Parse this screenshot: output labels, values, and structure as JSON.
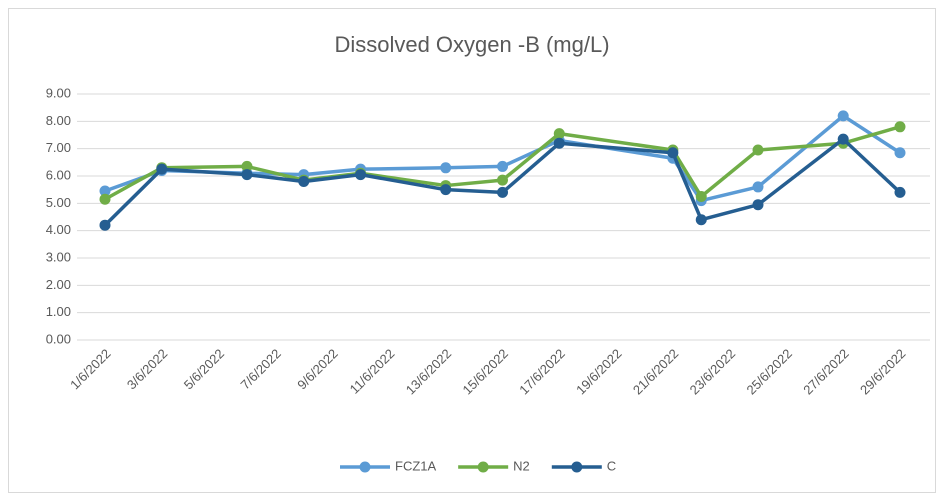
{
  "chart_data": {
    "type": "line",
    "title": "Dissolved Oxygen -B (mg/L)",
    "x": [
      "1/6/2022",
      "3/6/2022",
      "6/6/2022",
      "8/6/2022",
      "10/6/2022",
      "13/6/2022",
      "15/6/2022",
      "17/6/2022",
      "21/6/2022",
      "22/6/2022",
      "24/6/2022",
      "27/6/2022",
      "29/6/2022"
    ],
    "xticks": [
      "1/6/2022",
      "3/6/2022",
      "5/6/2022",
      "7/6/2022",
      "9/6/2022",
      "11/6/2022",
      "13/6/2022",
      "15/6/2022",
      "17/6/2022",
      "19/6/2022",
      "21/6/2022",
      "23/6/2022",
      "25/6/2022",
      "27/6/2022",
      "29/6/2022"
    ],
    "series": [
      {
        "name": "FCZ1A",
        "color": "#5b9bd5",
        "values": [
          5.45,
          6.2,
          6.1,
          6.05,
          6.25,
          6.3,
          6.35,
          7.3,
          6.65,
          5.1,
          5.6,
          8.2,
          6.85
        ]
      },
      {
        "name": "N2",
        "color": "#70ad47",
        "values": [
          5.15,
          6.3,
          6.35,
          5.85,
          6.1,
          5.65,
          5.85,
          7.55,
          6.95,
          5.25,
          6.95,
          7.2,
          7.8
        ]
      },
      {
        "name": "C",
        "color": "#255e91",
        "values": [
          4.2,
          6.25,
          6.05,
          5.8,
          6.05,
          5.5,
          5.4,
          7.2,
          6.85,
          4.4,
          4.95,
          7.35,
          5.4
        ]
      }
    ],
    "ylim": [
      0,
      9
    ],
    "yticks": [
      {
        "value": 0,
        "label": "0.00"
      },
      {
        "value": 1,
        "label": "1.00"
      },
      {
        "value": 2,
        "label": "2.00"
      },
      {
        "value": 3,
        "label": "3.00"
      },
      {
        "value": 4,
        "label": "4.00"
      },
      {
        "value": 5,
        "label": "5.00"
      },
      {
        "value": 6,
        "label": "6.00"
      },
      {
        "value": 7,
        "label": "7.00"
      },
      {
        "value": 8,
        "label": "8.00"
      },
      {
        "value": 9,
        "label": "9.00"
      }
    ],
    "grid": true,
    "legend": "bottom"
  }
}
